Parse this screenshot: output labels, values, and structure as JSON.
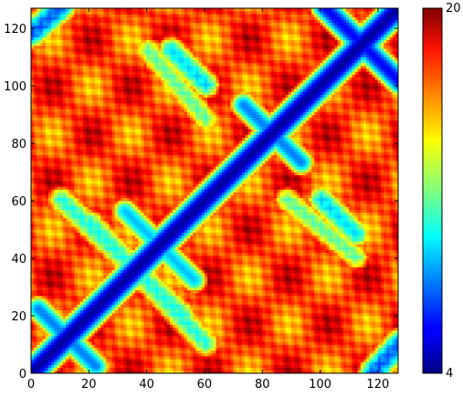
{
  "chart_data": {
    "type": "heatmap",
    "title": "",
    "xlabel": "",
    "ylabel": "",
    "matrix_size": 127,
    "xlim": [
      0,
      127
    ],
    "ylim": [
      0,
      127
    ],
    "x_ticks": [
      0,
      20,
      40,
      60,
      80,
      100,
      120
    ],
    "y_ticks": [
      0,
      20,
      40,
      60,
      80,
      100,
      120
    ],
    "x_tick_labels": [
      "0",
      "20",
      "40",
      "60",
      "80",
      "100",
      "120"
    ],
    "y_tick_labels": [
      "0",
      "20",
      "40",
      "60",
      "80",
      "100",
      "120"
    ],
    "colormap": "jet",
    "colorbar": {
      "min": 4,
      "max": 20,
      "min_label": "4",
      "max_label": "20"
    },
    "symmetric": true,
    "diagonal_value": 4,
    "background_value": 17,
    "features": [
      {
        "kind": "diagonal",
        "description": "low distance along main diagonal",
        "value": 4.5,
        "width": 4
      },
      {
        "kind": "antidiagonal",
        "center": [
          114,
          114
        ],
        "extent": 13,
        "value": 6
      },
      {
        "kind": "antidiagonal",
        "center": [
          44,
          44
        ],
        "extent": 12,
        "value": 9
      },
      {
        "kind": "antidiagonal",
        "center": [
          83,
          83
        ],
        "extent": 10,
        "value": 8
      },
      {
        "kind": "antidiagonal",
        "center": [
          12,
          12
        ],
        "extent": 10,
        "value": 8
      },
      {
        "kind": "contact-band",
        "from": [
          60,
          10
        ],
        "to": [
          20,
          52
        ],
        "value": 10
      },
      {
        "kind": "contact-band",
        "from": [
          100,
          60
        ],
        "to": [
          112,
          48
        ],
        "value": 9
      },
      {
        "kind": "contact-band",
        "from": [
          118,
          0
        ],
        "to": [
          127,
          10
        ],
        "value": 7
      },
      {
        "kind": "contact-band",
        "from": [
          60,
          88
        ],
        "to": [
          40,
          112
        ],
        "value": 11
      }
    ]
  }
}
